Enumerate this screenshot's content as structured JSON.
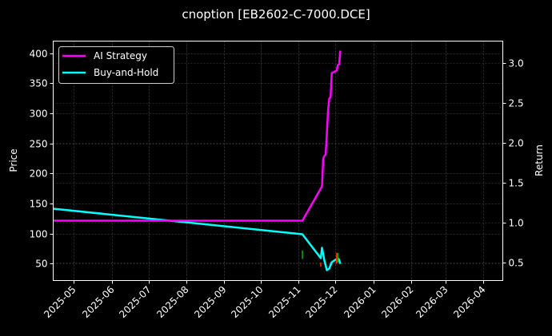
{
  "title": "cnoption [EB2602-C-7000.DCE]",
  "axes": {
    "left_label": "Price",
    "right_label": "Return",
    "left_ticks": [
      "50",
      "100",
      "150",
      "200",
      "250",
      "300",
      "350",
      "400"
    ],
    "right_ticks": [
      "0.5",
      "1.0",
      "1.5",
      "2.0",
      "2.5",
      "3.0"
    ],
    "x_ticks": [
      "2025-05",
      "2025-06",
      "2025-07",
      "2025-08",
      "2025-09",
      "2025-10",
      "2025-11",
      "2025-12",
      "2026-01",
      "2026-02",
      "2026-03",
      "2026-04"
    ]
  },
  "legend": {
    "items": [
      {
        "label": "AI Strategy",
        "color": "#ff00ff"
      },
      {
        "label": "Buy-and-Hold",
        "color": "#00ffff"
      }
    ]
  },
  "colors": {
    "background": "#000000",
    "grid": "#555555",
    "ai_strategy": "#ff00ff",
    "buy_and_hold": "#00ffff",
    "buy_marker": "#00aa00",
    "sell_marker": "#ff2200"
  },
  "chart_data": {
    "type": "line",
    "title": "cnoption [EB2602-C-7000.DCE]",
    "xlabel": "",
    "ylabel": "Price",
    "y2label": "Return",
    "ylim": [
      22,
      420
    ],
    "y2lim": [
      0.27,
      3.27
    ],
    "xlim": [
      "2025-04-14",
      "2026-04-17"
    ],
    "grid": true,
    "legend_position": "upper left",
    "x_tick_labels": [
      "2025-05",
      "2025-06",
      "2025-07",
      "2025-08",
      "2025-09",
      "2025-10",
      "2025-11",
      "2025-12",
      "2026-01",
      "2026-02",
      "2026-03",
      "2026-04"
    ],
    "series": [
      {
        "name": "AI Strategy",
        "axis": "right",
        "color": "#ff00ff",
        "x": [
          "2025-04-14",
          "2025-11-04",
          "2025-11-20",
          "2025-11-21",
          "2025-11-22",
          "2025-11-23",
          "2025-11-25",
          "2025-11-26",
          "2025-11-27",
          "2025-11-28",
          "2025-12-02",
          "2025-12-03",
          "2025-12-04",
          "2025-12-05"
        ],
        "values": [
          1.02,
          1.02,
          1.45,
          1.8,
          1.83,
          1.85,
          2.4,
          2.55,
          2.57,
          2.87,
          2.9,
          2.97,
          2.98,
          3.15
        ]
      },
      {
        "name": "Buy-and-Hold",
        "axis": "right",
        "color": "#00ffff",
        "x": [
          "2025-04-14",
          "2025-11-04",
          "2025-11-19",
          "2025-11-20",
          "2025-11-22",
          "2025-11-24",
          "2025-11-26",
          "2025-11-28",
          "2025-12-01",
          "2025-12-03",
          "2025-12-04",
          "2025-12-05"
        ],
        "values": [
          1.17,
          0.85,
          0.55,
          0.68,
          0.52,
          0.4,
          0.42,
          0.5,
          0.53,
          0.55,
          0.53,
          0.48
        ]
      }
    ],
    "markers": [
      {
        "type": "buy",
        "date": "2025-11-04",
        "color": "#00aa00",
        "price_range": [
          58,
          72
        ]
      },
      {
        "type": "sell",
        "date": "2025-11-19",
        "color": "#ff2200",
        "price_range": [
          45,
          52
        ]
      },
      {
        "type": "sell",
        "date": "2025-12-02",
        "color": "#ff2200",
        "price_range": [
          50,
          68
        ]
      },
      {
        "type": "buy",
        "date": "2025-12-03",
        "color": "#00aa00",
        "price_range": [
          52,
          68
        ]
      }
    ]
  }
}
